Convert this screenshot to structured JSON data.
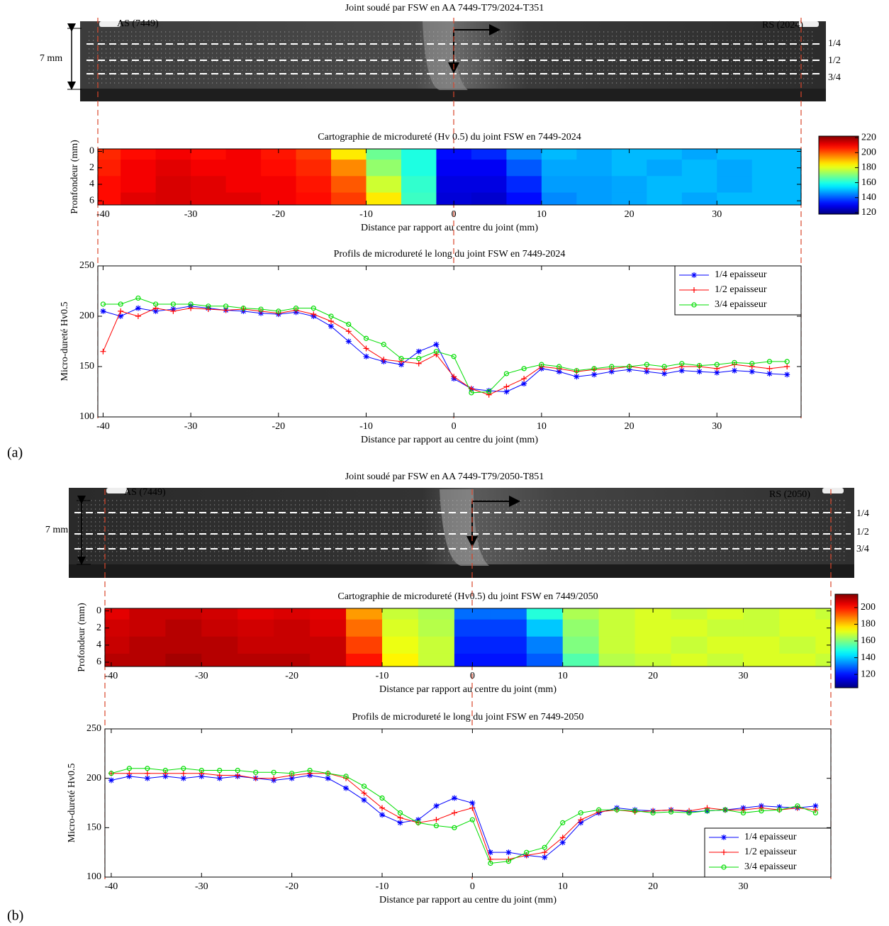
{
  "panels": [
    {
      "label": "(a)",
      "macrograph": {
        "title": "Joint soudé par FSW en AA 7449-T79/2024-T351",
        "as_label": "AS (7449)",
        "rs_label": "RS (2024)",
        "thickness": "7 mm",
        "levels": [
          "1/4",
          "1/2",
          "3/4"
        ]
      }
    },
    {
      "label": "(b)",
      "macrograph": {
        "title": "Joint soudé par FSW en AA 7449-T79/2050-T851",
        "as_label": "AS (7449)",
        "rs_label": "RS (2050)",
        "thickness": "7 mm",
        "levels": [
          "1/4",
          "1/2",
          "3/4"
        ]
      }
    }
  ],
  "chart_data": [
    {
      "type": "heatmap",
      "title": "Cartographie de microdureté (Hv 0.5) du joint FSW en 7449-2024",
      "xlabel": "Distance par rapport au centre du joint (mm)",
      "ylabel": "Pronfondeur (mm)",
      "x": [
        -40,
        -36,
        -32,
        -28,
        -24,
        -20,
        -16,
        -12,
        -8,
        -4,
        0,
        4,
        8,
        12,
        16,
        20,
        24,
        28,
        32,
        36,
        40
      ],
      "y": [
        0,
        2,
        4,
        6
      ],
      "z": [
        [
          205,
          208,
          210,
          208,
          210,
          207,
          203,
          185,
          168,
          160,
          132,
          135,
          145,
          150,
          148,
          150,
          150,
          148,
          150,
          150,
          150
        ],
        [
          206,
          210,
          212,
          210,
          210,
          208,
          205,
          195,
          172,
          160,
          130,
          130,
          140,
          148,
          148,
          150,
          148,
          150,
          148,
          150,
          150
        ],
        [
          208,
          210,
          213,
          212,
          210,
          210,
          207,
          200,
          178,
          162,
          128,
          128,
          135,
          147,
          147,
          148,
          150,
          150,
          148,
          150,
          150
        ],
        [
          208,
          212,
          213,
          212,
          212,
          210,
          208,
          203,
          185,
          163,
          127,
          126,
          132,
          145,
          147,
          148,
          150,
          148,
          150,
          150,
          150
        ]
      ],
      "xlim": [
        -40.6,
        39.6
      ],
      "xticks": [
        -40,
        -30,
        -20,
        -10,
        0,
        10,
        20,
        30
      ],
      "ylim": [
        6.5,
        -0.3
      ],
      "yticks": [
        0,
        2,
        4,
        6
      ],
      "colormap": "jet",
      "clim": [
        118,
        222
      ],
      "cticks": [
        120,
        140,
        160,
        180,
        200,
        220
      ]
    },
    {
      "type": "line",
      "title": "Profils de microdureté le long du joint FSW en 7449-2024",
      "xlabel": "Distance par rapport au centre du joint (mm)",
      "ylabel": "Micro-dureté Hv0.5",
      "x": [
        -40,
        -38,
        -36,
        -34,
        -32,
        -30,
        -28,
        -26,
        -24,
        -22,
        -20,
        -18,
        -16,
        -14,
        -12,
        -10,
        -8,
        -6,
        -4,
        -2,
        0,
        2,
        4,
        6,
        8,
        10,
        12,
        14,
        16,
        18,
        20,
        22,
        24,
        26,
        28,
        30,
        32,
        34,
        36,
        38
      ],
      "series": [
        {
          "name": "1/4 epaisseur",
          "color": "#0000ff",
          "marker": "*",
          "values": [
            205,
            200,
            208,
            205,
            207,
            210,
            208,
            206,
            205,
            203,
            202,
            204,
            200,
            190,
            175,
            160,
            155,
            152,
            165,
            172,
            138,
            128,
            126,
            125,
            133,
            148,
            145,
            140,
            142,
            145,
            147,
            145,
            143,
            146,
            145,
            144,
            146,
            145,
            143,
            142
          ]
        },
        {
          "name": "1/2 epaisseur",
          "color": "#ff0000",
          "marker": "+",
          "values": [
            165,
            205,
            200,
            208,
            205,
            208,
            207,
            206,
            207,
            205,
            203,
            206,
            202,
            195,
            185,
            168,
            157,
            155,
            153,
            162,
            140,
            128,
            122,
            130,
            138,
            150,
            148,
            145,
            147,
            148,
            150,
            148,
            147,
            150,
            150,
            148,
            152,
            150,
            148,
            150
          ]
        },
        {
          "name": "3/4 epaisseur",
          "color": "#00dd00",
          "marker": "o",
          "values": [
            212,
            212,
            218,
            212,
            212,
            212,
            210,
            210,
            208,
            207,
            205,
            208,
            208,
            200,
            192,
            178,
            172,
            158,
            158,
            165,
            160,
            124,
            125,
            143,
            148,
            152,
            150,
            146,
            148,
            150,
            150,
            152,
            150,
            153,
            151,
            152,
            154,
            153,
            155,
            155
          ]
        }
      ],
      "xlim": [
        -40.6,
        39.6
      ],
      "xticks": [
        -40,
        -30,
        -20,
        -10,
        0,
        10,
        20,
        30
      ],
      "ylim": [
        100,
        250
      ],
      "yticks": [
        100,
        150,
        200,
        250
      ],
      "legend": "upper right"
    },
    {
      "type": "heatmap",
      "title": "Cartographie de microdureté (Hv0.5) du joint FSW en 7449/2050",
      "xlabel": "Distance par rapport au centre du joint (mm)",
      "ylabel": "Profondeur (mm)",
      "x": [
        -40,
        -36,
        -32,
        -28,
        -24,
        -20,
        -16,
        -12,
        -8,
        -4,
        0,
        4,
        8,
        12,
        16,
        20,
        24,
        28,
        32,
        36,
        40
      ],
      "y": [
        0,
        2,
        4,
        6
      ],
      "z": [
        [
          205,
          208,
          208,
          207,
          205,
          206,
          205,
          185,
          168,
          165,
          130,
          130,
          150,
          165,
          168,
          170,
          168,
          170,
          168,
          170,
          168
        ],
        [
          207,
          208,
          210,
          208,
          207,
          208,
          206,
          190,
          170,
          166,
          125,
          125,
          140,
          162,
          168,
          170,
          170,
          168,
          168,
          170,
          170
        ],
        [
          208,
          210,
          210,
          210,
          208,
          208,
          208,
          195,
          172,
          168,
          122,
          122,
          132,
          160,
          168,
          170,
          168,
          170,
          170,
          168,
          170
        ],
        [
          210,
          210,
          212,
          210,
          210,
          210,
          208,
          200,
          175,
          168,
          120,
          120,
          128,
          155,
          166,
          168,
          170,
          168,
          170,
          170,
          168
        ]
      ],
      "xlim": [
        -40.7,
        39.7
      ],
      "xticks": [
        -40,
        -30,
        -20,
        -10,
        0,
        10,
        20,
        30
      ],
      "ylim": [
        6.5,
        -0.3
      ],
      "yticks": [
        0,
        2,
        4,
        6
      ],
      "colormap": "jet",
      "clim": [
        104,
        216
      ],
      "cticks": [
        120,
        140,
        160,
        180,
        200
      ]
    },
    {
      "type": "line",
      "title": "Profils de microdureté le long du joint FSW en 7449-2050",
      "xlabel": "Distance par rapport au centre du joint (mm)",
      "ylabel": "Micro-dureté Hv0.5",
      "x": [
        -40,
        -38,
        -36,
        -34,
        -32,
        -30,
        -28,
        -26,
        -24,
        -22,
        -20,
        -18,
        -16,
        -14,
        -12,
        -10,
        -8,
        -6,
        -4,
        -2,
        0,
        2,
        4,
        6,
        8,
        10,
        12,
        14,
        16,
        18,
        20,
        22,
        24,
        26,
        28,
        30,
        32,
        34,
        36,
        38
      ],
      "series": [
        {
          "name": "1/4 epaisseur",
          "color": "#0000ff",
          "marker": "*",
          "values": [
            198,
            202,
            200,
            202,
            200,
            202,
            200,
            202,
            200,
            198,
            200,
            203,
            200,
            190,
            178,
            163,
            155,
            158,
            172,
            180,
            175,
            125,
            125,
            122,
            120,
            135,
            155,
            165,
            170,
            168,
            167,
            168,
            166,
            167,
            168,
            170,
            172,
            171,
            170,
            172
          ]
        },
        {
          "name": "1/2 epaisseur",
          "color": "#ff0000",
          "marker": "+",
          "values": [
            205,
            205,
            205,
            205,
            205,
            205,
            203,
            203,
            200,
            200,
            203,
            205,
            205,
            200,
            185,
            170,
            160,
            155,
            158,
            165,
            170,
            118,
            118,
            122,
            125,
            140,
            158,
            166,
            168,
            166,
            167,
            168,
            167,
            170,
            168,
            168,
            170,
            168,
            170,
            168
          ]
        },
        {
          "name": "3/4 epaisseur",
          "color": "#00dd00",
          "marker": "o",
          "values": [
            205,
            210,
            210,
            208,
            210,
            208,
            208,
            208,
            206,
            206,
            205,
            208,
            205,
            202,
            192,
            180,
            165,
            155,
            152,
            150,
            158,
            114,
            116,
            125,
            130,
            155,
            165,
            168,
            168,
            167,
            165,
            166,
            165,
            167,
            168,
            165,
            167,
            168,
            172,
            165
          ]
        }
      ],
      "xlim": [
        -40.7,
        39.7
      ],
      "xticks": [
        -40,
        -30,
        -20,
        -10,
        0,
        10,
        20,
        30
      ],
      "ylim": [
        100,
        250
      ],
      "yticks": [
        100,
        150,
        200,
        250
      ],
      "legend": "lower right"
    }
  ]
}
